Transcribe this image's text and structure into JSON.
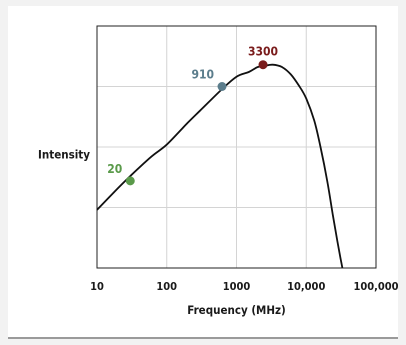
{
  "chart_data": {
    "type": "line",
    "title": "",
    "xlabel": "Frequency (MHz)",
    "ylabel": "Intensity",
    "x_scale": "log",
    "xlim": [
      10,
      100000
    ],
    "ylim": [
      0,
      1
    ],
    "x_ticks": [
      10,
      100,
      1000,
      10000,
      100000
    ],
    "x_tick_labels": [
      "10",
      "100",
      "1000",
      "10,000",
      "100,000"
    ],
    "grid": true,
    "legend": "none",
    "curve_color": "#111111",
    "series": [
      {
        "x": [
          10,
          20,
          30,
          60,
          100,
          200,
          300,
          600,
          1000,
          1500,
          2000,
          2500,
          3300,
          4500,
          6000,
          8000,
          10000,
          13000,
          16000,
          20000,
          24000,
          28000,
          31000,
          33000
        ],
        "y": [
          0.24,
          0.33,
          0.38,
          0.46,
          0.51,
          0.6,
          0.65,
          0.735,
          0.79,
          0.81,
          0.83,
          0.835,
          0.84,
          0.83,
          0.8,
          0.75,
          0.7,
          0.61,
          0.5,
          0.36,
          0.22,
          0.11,
          0.04,
          0.0
        ]
      }
    ],
    "highlighted_points": [
      {
        "label": "20",
        "x": 30,
        "y": 0.36,
        "color": "#5a9a4a"
      },
      {
        "label": "910",
        "x": 620,
        "y": 0.75,
        "color": "#5b7d8c"
      },
      {
        "label": "3300",
        "x": 2400,
        "y": 0.84,
        "color": "#7a1c1c"
      }
    ]
  }
}
